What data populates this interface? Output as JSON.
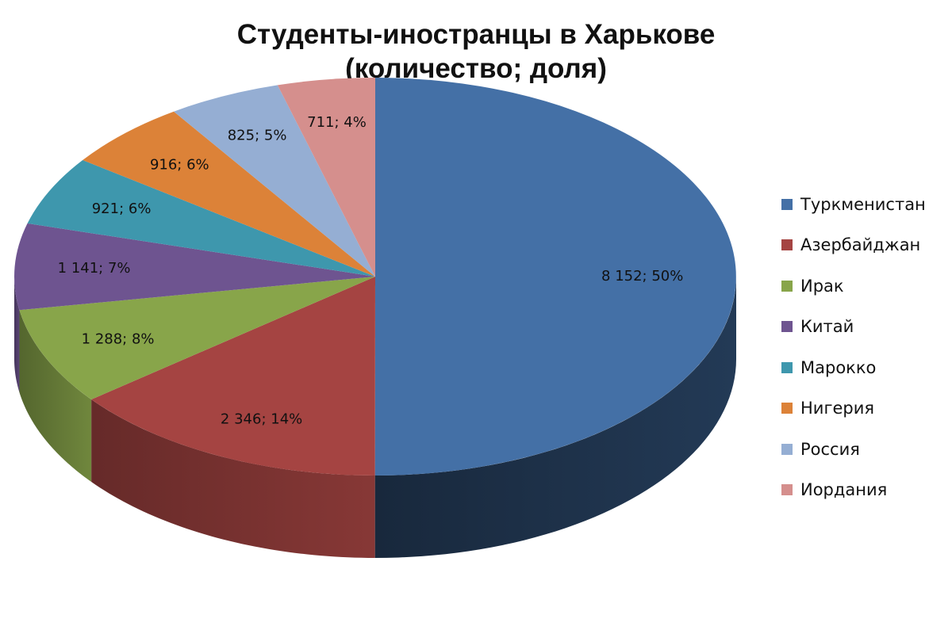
{
  "chart_data": {
    "type": "pie",
    "title_line1": "Студенты-иностранцы в Харькове",
    "title_line2": "(количество; доля)",
    "legend_position": "right",
    "slices": [
      {
        "name": "Туркменистан",
        "value": 8152,
        "label": "8 152; 50%",
        "color": "#4470A6"
      },
      {
        "name": "Азербайджан",
        "value": 2346,
        "label": "2 346; 14%",
        "color": "#A54442"
      },
      {
        "name": "Ирак",
        "value": 1288,
        "label": "1 288; 8%",
        "color": "#88A54A"
      },
      {
        "name": "Китай",
        "value": 1141,
        "label": "1 141; 7%",
        "color": "#6E5490"
      },
      {
        "name": "Марокко",
        "value": 921,
        "label": "921; 6%",
        "color": "#3E97AD"
      },
      {
        "name": "Нигерия",
        "value": 916,
        "label": "916; 6%",
        "color": "#DC8238"
      },
      {
        "name": "Россия",
        "value": 825,
        "label": "825; 5%",
        "color": "#95AED3"
      },
      {
        "name": "Иордания",
        "value": 711,
        "label": "711; 4%",
        "color": "#D58F8D"
      }
    ]
  }
}
